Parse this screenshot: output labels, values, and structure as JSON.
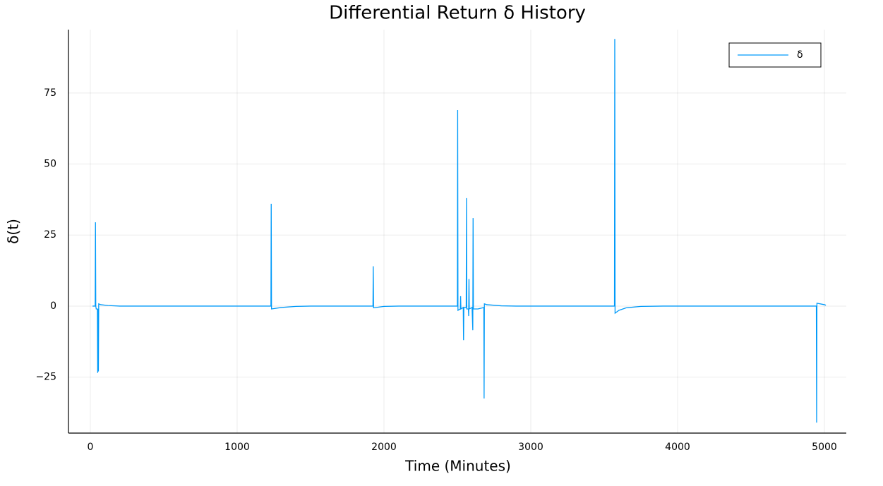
{
  "chart_data": {
    "type": "line",
    "title": "Differential Return δ History",
    "xlabel": "Time (Minutes)",
    "ylabel": "δ(t)",
    "x": [
      15,
      33,
      35,
      37,
      40,
      48,
      50,
      53,
      55,
      57,
      70,
      120,
      200,
      1230,
      1232,
      1234,
      1300,
      1400,
      1500,
      1925,
      1927,
      1929,
      2000,
      2100,
      2500,
      2502,
      2504,
      2520,
      2522,
      2524,
      2540,
      2542,
      2544,
      2560,
      2562,
      2564,
      2575,
      2577,
      2579,
      2581,
      2600,
      2605,
      2607,
      2609,
      2640,
      2680,
      2682,
      2684,
      2700,
      2800,
      2900,
      3570,
      3572,
      3574,
      3600,
      3650,
      3750,
      3900,
      4945,
      4947,
      4949,
      5000,
      5010
    ],
    "series": [
      {
        "name": "δ",
        "color": "#009af9",
        "values": [
          0,
          0,
          29.5,
          0,
          -1,
          -1,
          -23.5,
          -1,
          -23,
          0.8,
          0.5,
          0.2,
          0,
          0,
          36,
          -1,
          -0.5,
          -0.1,
          0,
          0,
          14,
          -0.6,
          -0.1,
          0,
          0,
          69,
          -1.5,
          -1,
          3.5,
          -1,
          -0.5,
          -12,
          -0.5,
          -0.5,
          38,
          -1,
          -1,
          -3.5,
          9.5,
          -1,
          -0.5,
          -8.5,
          31,
          -1,
          -1,
          -0.5,
          -32.5,
          0.8,
          0.5,
          0.1,
          0,
          0,
          94,
          -2.5,
          -1.5,
          -0.6,
          -0.1,
          0,
          0,
          -41,
          1,
          0.5,
          0.3
        ]
      }
    ],
    "xlim": [
      -149,
      5149
    ],
    "ylim": [
      -44.7,
      97.3
    ],
    "xticks": [
      0,
      1000,
      2000,
      3000,
      4000,
      5000
    ],
    "yticks": [
      {
        "value": -25,
        "label": "−25"
      },
      0,
      25,
      50,
      75
    ],
    "grid": true,
    "legend": "top-right"
  }
}
